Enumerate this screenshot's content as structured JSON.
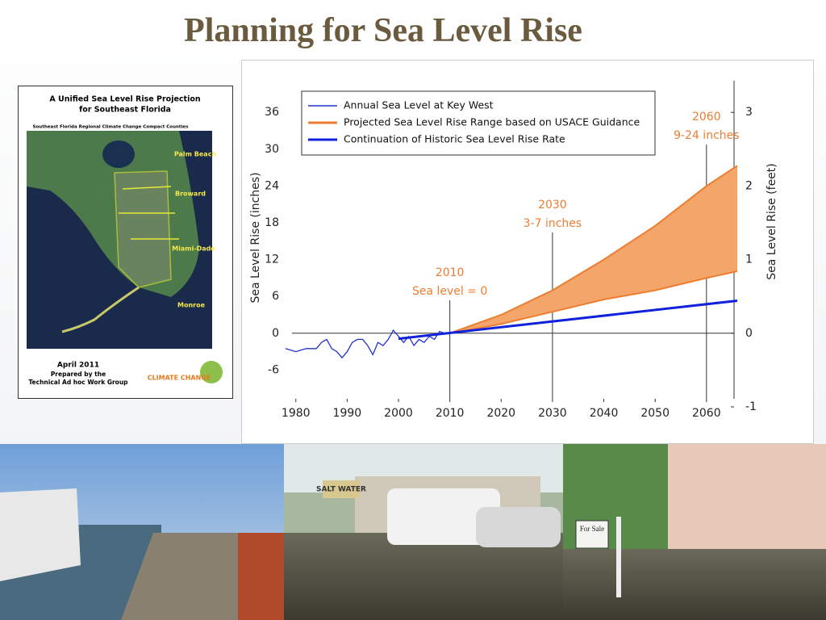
{
  "title": "Planning for Sea Level Rise",
  "cover": {
    "title": [
      "A Unified Sea Level Rise Projection",
      "for Southeast Florida"
    ],
    "subtitle": "Southeast Florida Regional Climate Change Compact Counties",
    "regions": [
      "Palm Beach",
      "Broward",
      "Miami-Dade",
      "Monroe"
    ],
    "date": "April 2011",
    "prepared_by": "Prepared by the",
    "group": "Technical Ad hoc Work Group",
    "logo": "CLIMATE CHANGE"
  },
  "photos": {
    "signs": [
      "SALT WATER",
      "For Sale"
    ]
  },
  "chart_data": {
    "type": "line",
    "xlim": [
      1978,
      2066
    ],
    "xticks": [
      1980,
      1990,
      2000,
      2010,
      2020,
      2030,
      2040,
      2050,
      2060
    ],
    "ylim": [
      -12,
      40.5
    ],
    "yticks": [
      -6,
      0,
      6,
      12,
      18,
      24,
      30,
      36
    ],
    "y2lim": [
      -1,
      3.375
    ],
    "y2ticks": [
      -1,
      0,
      1,
      2,
      3
    ],
    "ylabel": "Sea Level Rise (inches)",
    "y2label": "Sea Level Rise (feet)",
    "legend": "top-left",
    "series": [
      {
        "name": "Annual Sea Level at Key West",
        "color": "#2233cc",
        "x": [
          1978,
          1980,
          1982,
          1984,
          1985,
          1986,
          1987,
          1988,
          1989,
          1990,
          1991,
          1992,
          1993,
          1994,
          1995,
          1996,
          1997,
          1998,
          1999,
          2000,
          2001,
          2002,
          2003,
          2004,
          2005,
          2006,
          2007,
          2008,
          2009,
          2010
        ],
        "values": [
          -2.5,
          -3,
          -2.5,
          -2.5,
          -1.5,
          -1,
          -2.5,
          -3,
          -4,
          -3,
          -1.5,
          -1,
          -1,
          -2,
          -3.5,
          -1.5,
          -2,
          -1,
          0.5,
          -0.5,
          -1.5,
          -0.5,
          -2,
          -1,
          -1.5,
          -0.5,
          -1,
          0.3,
          0,
          0
        ]
      },
      {
        "name": "Projected Sea Level Rise Range based on USACE Guidance",
        "color": "#ec7d31",
        "x": [
          2010,
          2020,
          2030,
          2040,
          2050,
          2060,
          2066
        ],
        "low": [
          0,
          1.5,
          3.5,
          5.5,
          7,
          9,
          10.1
        ],
        "high": [
          0,
          3,
          7,
          12,
          17.5,
          24,
          27.3
        ]
      },
      {
        "name": "Continuation of Historic Sea Level Rise Rate",
        "color": "#1122dd",
        "x": [
          2000,
          2066
        ],
        "values": [
          -0.9,
          5.3
        ]
      }
    ],
    "annotations": [
      {
        "x": 2010,
        "lines": [
          "2010",
          "Sea level = 0"
        ]
      },
      {
        "x": 2030,
        "lines": [
          "2030",
          "3-7 inches"
        ]
      },
      {
        "x": 2060,
        "lines": [
          "2060",
          "9-24 inches"
        ]
      }
    ]
  }
}
